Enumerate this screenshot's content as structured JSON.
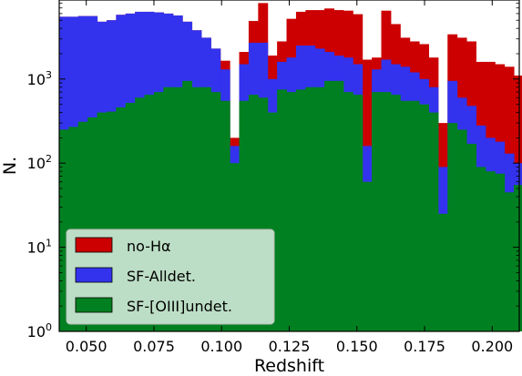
{
  "chart_data": {
    "type": "bar",
    "title": "",
    "xlabel": "Redshift",
    "ylabel": "N.",
    "xlim": [
      0.04,
      0.21
    ],
    "ylim": [
      1,
      8700
    ],
    "yscale": "log",
    "grid": false,
    "legend_position": "bottom-left",
    "stacked": true,
    "x_ticks": [
      0.05,
      0.075,
      0.1,
      0.125,
      0.15,
      0.175,
      0.2
    ],
    "x_tick_labels": [
      "0.050",
      "0.075",
      "0.100",
      "0.125",
      "0.150",
      "0.175",
      "0.200"
    ],
    "y_ticks": [
      1,
      10,
      100,
      1000
    ],
    "y_tick_labels": [
      {
        "base": "10",
        "exp": "0"
      },
      {
        "base": "10",
        "exp": "1"
      },
      {
        "base": "10",
        "exp": "2"
      },
      {
        "base": "10",
        "exp": "3"
      }
    ],
    "bin_edges": [
      0.04,
      0.0435,
      0.047,
      0.0505,
      0.054,
      0.0575,
      0.061,
      0.0645,
      0.068,
      0.0715,
      0.075,
      0.0785,
      0.082,
      0.0855,
      0.089,
      0.0925,
      0.096,
      0.0995,
      0.103,
      0.1065,
      0.11,
      0.1135,
      0.117,
      0.1205,
      0.124,
      0.1275,
      0.131,
      0.1345,
      0.138,
      0.1415,
      0.145,
      0.1485,
      0.152,
      0.1555,
      0.159,
      0.1625,
      0.166,
      0.1695,
      0.173,
      0.1765,
      0.18,
      0.1835,
      0.187,
      0.1905,
      0.194,
      0.1975,
      0.201,
      0.2045,
      0.208,
      0.2115
    ],
    "series": [
      {
        "name": "no-Hα",
        "color": "#cc0000",
        "totals": [
          5500,
          5500,
          5600,
          5600,
          4800,
          5000,
          5800,
          6000,
          6300,
          6300,
          6200,
          6000,
          5700,
          4800,
          3800,
          3100,
          2300,
          1650,
          200,
          2100,
          4900,
          8000,
          1900,
          2800,
          5200,
          6300,
          6600,
          6600,
          6900,
          6600,
          6500,
          5900,
          1700,
          1800,
          6500,
          4500,
          3100,
          2800,
          2600,
          1800,
          300,
          3400,
          3100,
          2800,
          1600,
          1600,
          1500,
          1400,
          1100
        ]
      },
      {
        "name": "SF-Alldet.",
        "color": "#3333ee",
        "totals": [
          5500,
          5500,
          5600,
          5600,
          4800,
          5000,
          5800,
          6000,
          6300,
          6300,
          6200,
          6000,
          5700,
          4800,
          3800,
          3100,
          2300,
          1300,
          160,
          1500,
          2700,
          2700,
          1000,
          1600,
          1800,
          2500,
          2500,
          2300,
          2100,
          1900,
          1800,
          1500,
          160,
          1300,
          1700,
          1500,
          1400,
          1200,
          1000,
          800,
          90,
          950,
          600,
          480,
          280,
          200,
          180,
          130,
          100
        ]
      },
      {
        "name": "SF-[OIII]undet.",
        "color": "#008020",
        "totals": [
          250,
          270,
          310,
          350,
          400,
          410,
          460,
          520,
          600,
          650,
          700,
          800,
          800,
          950,
          800,
          800,
          700,
          550,
          100,
          550,
          650,
          600,
          400,
          750,
          700,
          750,
          800,
          800,
          950,
          950,
          700,
          650,
          60,
          700,
          700,
          650,
          550,
          550,
          500,
          400,
          25,
          300,
          250,
          170,
          90,
          80,
          75,
          45,
          55
        ]
      }
    ],
    "legend": [
      {
        "label": "no-Hα",
        "color": "#cc0000"
      },
      {
        "label": "SF-Alldet.",
        "color": "#3333ee"
      },
      {
        "label": "SF-[OIII]undet.",
        "color": "#008020"
      }
    ]
  }
}
